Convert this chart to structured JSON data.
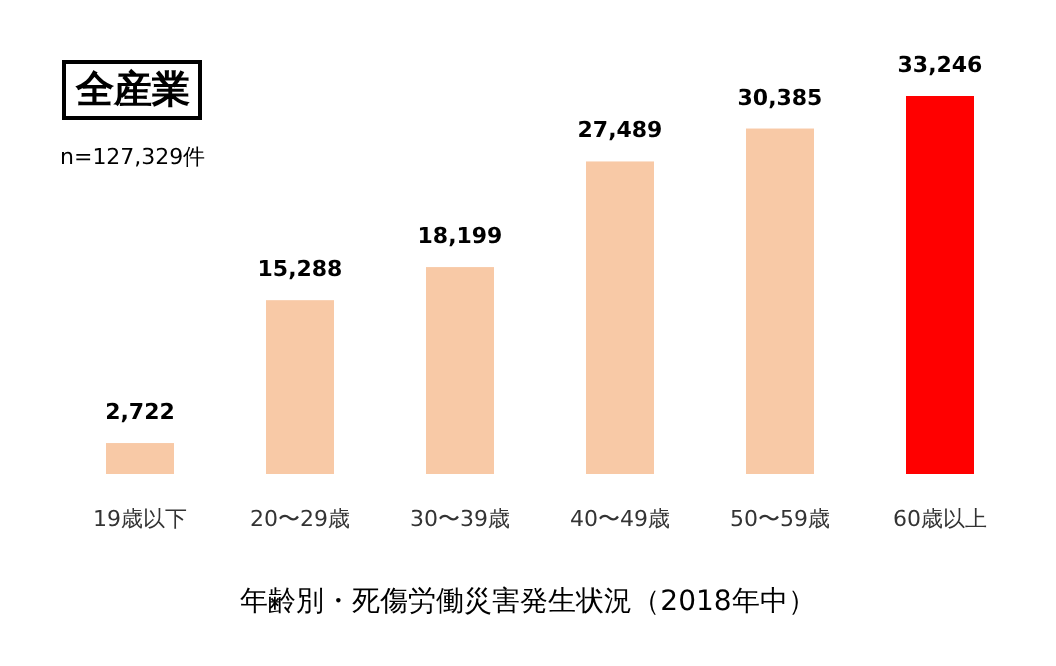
{
  "chart_data": {
    "type": "bar",
    "title": "全産業",
    "subtitle": "n=127,329件",
    "categories": [
      "19歳以下",
      "20〜29歳",
      "30〜39歳",
      "40〜49歳",
      "50〜59歳",
      "60歳以上"
    ],
    "values": [
      2722,
      15288,
      18199,
      27489,
      30385,
      33246
    ],
    "colors": [
      "#f8c9a6",
      "#f8c9a6",
      "#f8c9a6",
      "#f8c9a6",
      "#f8c9a6",
      "#ff0000"
    ],
    "value_labels": [
      "2,722",
      "15,288",
      "18,199",
      "27,489",
      "30,385",
      "33,246"
    ],
    "annotations": [
      "年齢別・死傷労働災害発生状況（2018年中）"
    ]
  }
}
